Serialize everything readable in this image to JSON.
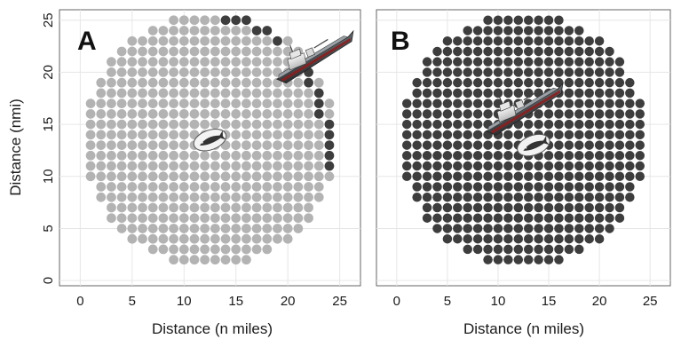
{
  "chart_data": [
    {
      "type": "scatter",
      "panel_label": "A",
      "xlabel": "",
      "ylabel": "Distance (nmi)",
      "xlim": [
        -2,
        27
      ],
      "ylim": [
        -0.5,
        26
      ],
      "x_ticks": [
        "0",
        "5",
        "10",
        "15",
        "20",
        "25"
      ],
      "y_ticks": [
        "0",
        "5",
        "10",
        "15",
        "20",
        "25"
      ],
      "grid": true,
      "point_spacing": 1,
      "region_center": [
        12.5,
        13.5
      ],
      "region_radius": 12.2,
      "colors": {
        "light": "#b3b3b3",
        "dark": "#3d3d3d"
      },
      "dark_points": [
        [
          14,
          25
        ],
        [
          15,
          25
        ],
        [
          16,
          25
        ],
        [
          17,
          24
        ],
        [
          18,
          24
        ],
        [
          19,
          23
        ],
        [
          21,
          21
        ],
        [
          22,
          20
        ],
        [
          22,
          19
        ],
        [
          23,
          18
        ],
        [
          23,
          17
        ],
        [
          23,
          16
        ],
        [
          24,
          15
        ],
        [
          24,
          14
        ],
        [
          24,
          13
        ],
        [
          24,
          12
        ],
        [
          24,
          11
        ]
      ],
      "vessel_icon": {
        "name": "ship",
        "x": 22.5,
        "y": 21.5
      },
      "whale_icon": {
        "name": "whale",
        "x": 12.5,
        "y": 13.5
      }
    },
    {
      "type": "scatter",
      "panel_label": "B",
      "xlabel": "",
      "ylabel": "",
      "xlim": [
        -2,
        27
      ],
      "ylim": [
        -0.5,
        26
      ],
      "x_ticks": [
        "0",
        "5",
        "10",
        "15",
        "20",
        "25"
      ],
      "grid": true,
      "point_spacing": 1,
      "region_center": [
        12.5,
        13.5
      ],
      "region_radius": 12.2,
      "colors": {
        "light": "#b3b3b3",
        "dark": "#3d3d3d"
      },
      "all_dark": true,
      "vessel_icon": {
        "name": "ship",
        "x": 12.5,
        "y": 16.5
      },
      "whale_icon": {
        "name": "whale",
        "x": 13.5,
        "y": 13
      }
    }
  ],
  "shared_xlabel": "Distance (n miles)"
}
